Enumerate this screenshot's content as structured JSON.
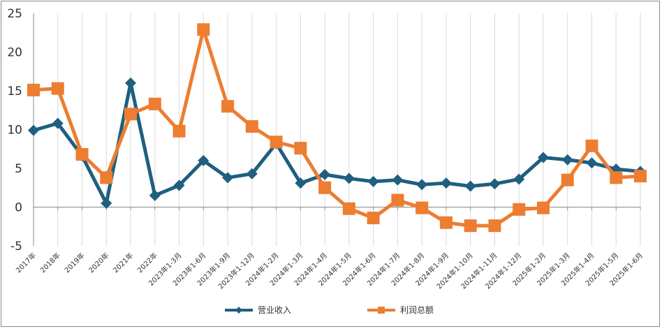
{
  "chart_data": {
    "type": "line",
    "title": "",
    "xlabel": "",
    "ylabel": "",
    "ylim": [
      -5,
      25
    ],
    "yticks": [
      -5,
      0,
      5,
      10,
      15,
      20,
      25
    ],
    "grid": "vertical",
    "legend_position": "bottom",
    "categories": [
      "2017年",
      "2018年",
      "2019年",
      "2020年",
      "2021年",
      "2022年",
      "2023年1-3月",
      "2023年1-6月",
      "2023年1-9月",
      "2023年1-12月",
      "2024年1-2月",
      "2024年1-3月",
      "2024年1-4月",
      "2024年1-5月",
      "2024年1-6月",
      "2024年1-7月",
      "2024年1-8月",
      "2024年1-9月",
      "2024年1-10月",
      "2024年1-11月",
      "2024年1-12月",
      "2025年1-2月",
      "2025年1-3月",
      "2025年1-4月",
      "2025年1-5月",
      "2025年1-6月"
    ],
    "series": [
      {
        "name": "营业收入",
        "color": "#1f5f7f",
        "marker": "diamond",
        "values": [
          9.9,
          10.8,
          6.6,
          0.5,
          16.0,
          1.5,
          2.8,
          6.0,
          3.8,
          4.3,
          8.2,
          3.1,
          4.2,
          3.7,
          3.3,
          3.5,
          2.9,
          3.1,
          2.7,
          3.0,
          3.6,
          6.4,
          6.1,
          5.7,
          4.9,
          4.6
        ]
      },
      {
        "name": "利润总额",
        "color": "#ed7d31",
        "marker": "square",
        "values": [
          15.1,
          15.3,
          6.8,
          3.8,
          12.0,
          13.3,
          9.8,
          22.9,
          13.0,
          10.4,
          8.4,
          7.6,
          2.5,
          -0.2,
          -1.4,
          0.9,
          -0.1,
          -2.0,
          -2.4,
          -2.4,
          -0.3,
          -0.1,
          3.5,
          7.9,
          3.8,
          4.0
        ]
      }
    ]
  }
}
